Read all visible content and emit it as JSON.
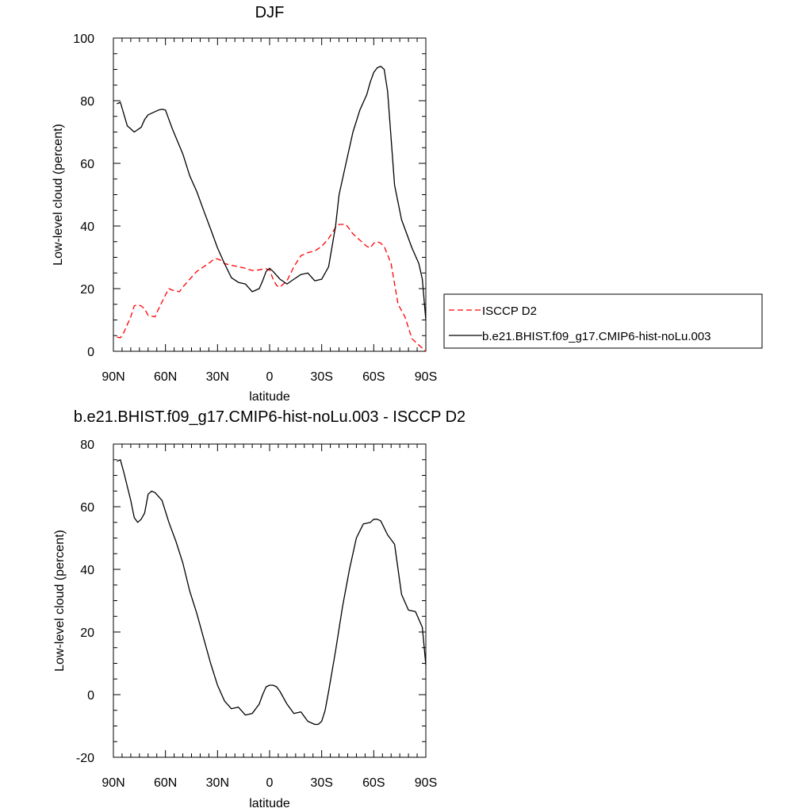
{
  "chart_data": [
    {
      "type": "line",
      "title": "DJF",
      "xlabel": "latitude",
      "ylabel": "Low-level cloud (percent)",
      "xlim": [
        90,
        -90
      ],
      "ylim": [
        0,
        100
      ],
      "x_ticks": [
        90,
        60,
        30,
        0,
        -30,
        -60,
        -90
      ],
      "x_tick_labels": [
        "90N",
        "60N",
        "30N",
        "0",
        "30S",
        "60S",
        "90S"
      ],
      "y_ticks": [
        0,
        20,
        40,
        60,
        80,
        100
      ],
      "y_tick_labels": [
        "0",
        "20",
        "40",
        "60",
        "80",
        "100"
      ],
      "legend_position": "right",
      "series": [
        {
          "name": "ISCCP D2",
          "color": "#ff0000",
          "dash": "dashed",
          "x": [
            88,
            86,
            84,
            80,
            78,
            76,
            74,
            72,
            70,
            66,
            64,
            60,
            58,
            56,
            52,
            50,
            46,
            42,
            38,
            34,
            32,
            30,
            28,
            26,
            22,
            18,
            14,
            10,
            6,
            4,
            2,
            0,
            -2,
            -4,
            -6,
            -10,
            -14,
            -18,
            -22,
            -26,
            -30,
            -34,
            -38,
            -40,
            -44,
            -48,
            -52,
            -56,
            -58,
            -60,
            -62,
            -64,
            -66,
            -70,
            -74,
            -78,
            -82,
            -86,
            -88,
            -90
          ],
          "y": [
            4.5,
            4.3,
            6,
            11,
            14.5,
            14.8,
            14.5,
            13.5,
            11.5,
            11,
            13.5,
            18,
            20,
            19.5,
            19,
            20.5,
            23,
            25.5,
            27,
            28.5,
            29.5,
            29.5,
            29,
            28,
            27.5,
            27,
            26.5,
            25.8,
            26,
            26.2,
            26.3,
            26,
            23,
            21,
            20.5,
            22.5,
            27,
            30.5,
            31.5,
            32,
            33.5,
            36,
            39.5,
            40.5,
            40.5,
            37.5,
            35.5,
            33.5,
            33,
            34.5,
            35,
            34.5,
            33.5,
            28,
            15,
            11,
            4,
            2,
            1,
            0
          ]
        },
        {
          "name": "b.e21.BHIST.f09_g17.CMIP6-hist-noLu.003",
          "color": "#000000",
          "dash": "solid",
          "x": [
            88,
            86,
            82,
            78,
            74,
            72,
            70,
            66,
            64,
            62,
            60,
            58,
            56,
            50,
            46,
            42,
            38,
            34,
            30,
            26,
            22,
            18,
            14,
            10,
            6,
            4,
            2,
            0,
            -2,
            -6,
            -10,
            -14,
            -18,
            -22,
            -26,
            -30,
            -34,
            -38,
            -40,
            -44,
            -48,
            -52,
            -56,
            -58,
            -60,
            -62,
            -64,
            -66,
            -68,
            -72,
            -76,
            -82,
            -86,
            -88,
            -90
          ],
          "y": [
            79,
            79.5,
            72,
            70,
            71.5,
            74,
            75.5,
            76.5,
            77,
            77.3,
            77,
            74,
            71,
            63,
            56,
            51,
            45,
            39,
            33,
            28,
            23.5,
            22,
            21.5,
            19,
            20,
            22.5,
            25.5,
            26.5,
            25.5,
            23,
            21.5,
            23,
            24.5,
            25,
            22.5,
            23,
            27,
            40,
            50,
            60,
            70,
            77,
            82,
            86,
            89,
            90.5,
            91,
            90,
            83,
            53,
            42,
            33,
            28,
            23,
            10
          ]
        }
      ]
    },
    {
      "type": "line",
      "title": "b.e21.BHIST.f09_g17.CMIP6-hist-noLu.003 - ISCCP D2",
      "xlabel": "latitude",
      "ylabel": "Low-level cloud (percent)",
      "xlim": [
        90,
        -90
      ],
      "ylim": [
        -20,
        80
      ],
      "x_ticks": [
        90,
        60,
        30,
        0,
        -30,
        -60,
        -90
      ],
      "x_tick_labels": [
        "90N",
        "60N",
        "30N",
        "0",
        "30S",
        "60S",
        "90S"
      ],
      "y_ticks": [
        -20,
        0,
        20,
        40,
        60,
        80
      ],
      "y_tick_labels": [
        "-20",
        "0",
        "20",
        "40",
        "60",
        "80"
      ],
      "series": [
        {
          "color": "#000000",
          "dash": "solid",
          "x": [
            88,
            86,
            84,
            80,
            78,
            76,
            74,
            72,
            70,
            68,
            66,
            62,
            58,
            54,
            50,
            46,
            42,
            38,
            34,
            30,
            26,
            22,
            18,
            14,
            10,
            6,
            4,
            2,
            0,
            -2,
            -4,
            -6,
            -10,
            -14,
            -18,
            -22,
            -26,
            -28,
            -30,
            -32,
            -34,
            -38,
            -42,
            -46,
            -50,
            -54,
            -58,
            -60,
            -62,
            -64,
            -68,
            -72,
            -76,
            -80,
            -84,
            -88,
            -90
          ],
          "y": [
            74.5,
            75,
            71,
            62,
            56.5,
            55,
            56,
            58,
            64,
            65,
            64.5,
            62,
            55,
            49,
            42,
            33,
            26,
            18,
            10,
            3,
            -2,
            -4.5,
            -4,
            -6.5,
            -6,
            -3,
            0,
            2.5,
            3,
            3,
            2.5,
            1,
            -3,
            -6,
            -5.5,
            -8.5,
            -9.5,
            -9.5,
            -8.5,
            -5,
            1,
            14,
            28,
            40,
            50,
            54.5,
            55,
            56,
            56,
            55.5,
            51,
            48,
            32,
            27,
            26.5,
            21.5,
            9.5
          ]
        }
      ]
    }
  ]
}
